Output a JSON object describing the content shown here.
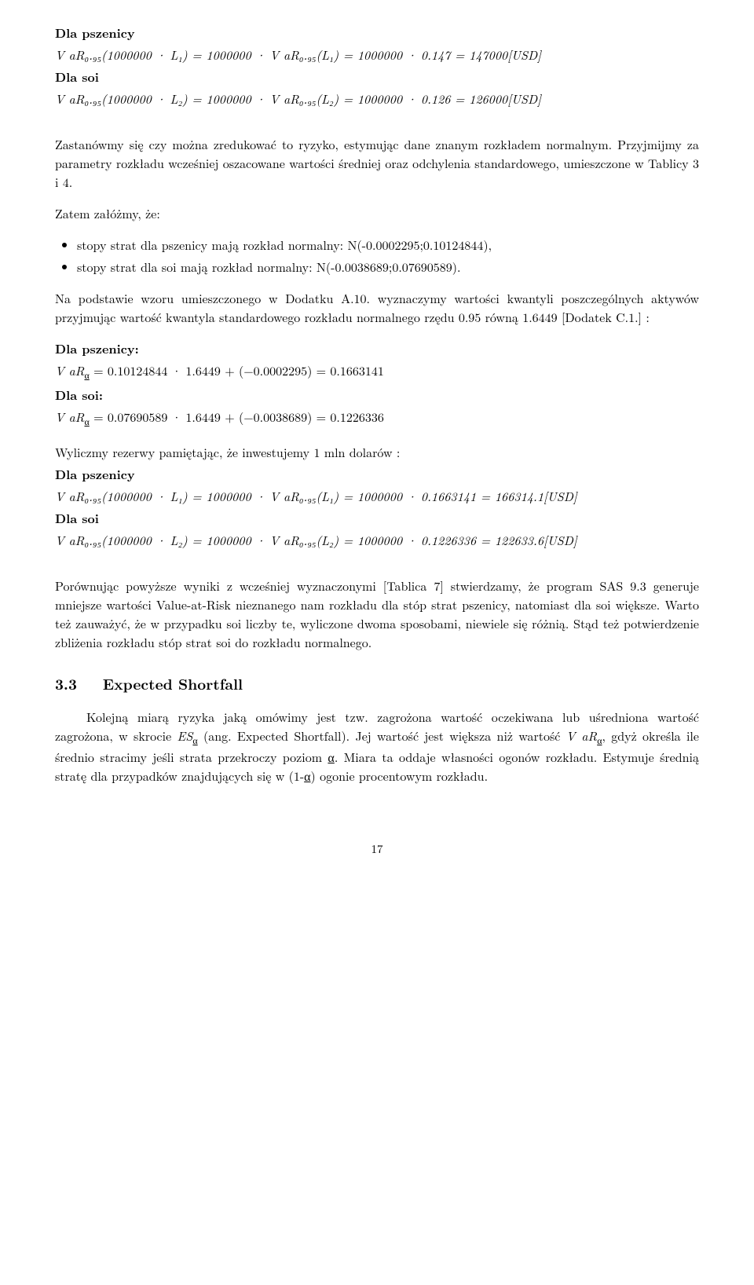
{
  "block1": {
    "h_wheat": "Dla pszenicy",
    "eq_wheat": "V aR₀.₉₅(1000000 · L₁) = 1000000 · V aR₀.₉₅(L₁) = 1000000 · 0.147 = 147000[USD]",
    "h_soy": "Dla soi",
    "eq_soy": "V aR₀.₉₅(1000000 · L₂) = 1000000 · V aR₀.₉₅(L₂) = 1000000 · 0.126 = 126000[USD]"
  },
  "para1": "Zastanówmy się czy można zredukować to ryzyko, estymując dane znanym rozkładem normalnym. Przyjmijmy za parametry rozkładu wcześniej oszacowane wartości średniej oraz odchylenia standardowego, umieszczone w Tablicy 3 i 4.",
  "assume": "Zatem załóżmy, że:",
  "bullets": {
    "b1": "stopy strat dla pszenicy mają rozkład normalny: N(-0.0002295;0.10124844),",
    "b2": "stopy strat dla soi mają rozkład normalny: N(-0.0038689;0.07690589)."
  },
  "para2": "Na podstawie wzoru umieszczonego w Dodatku A.10. wyznaczymy wartości kwantyli poszczególnych aktywów przyjmując wartość kwantyla standardowego rozkładu normalnego rzędu 0.95 równą 1.6449 [Dodatek C.1.] :",
  "block2": {
    "h_wheat": "Dla pszenicy:",
    "eq_wheat_a": "V aR",
    "eq_wheat_sub": "α",
    "eq_wheat_b": " = 0.10124844 · 1.6449 + (−0.0002295) = 0.1663141",
    "h_soy": "Dla soi:",
    "eq_soy_a": "V aR",
    "eq_soy_sub": "α",
    "eq_soy_b": " = 0.07690589 · 1.6449 + (−0.0038689) = 0.1226336"
  },
  "para3": "Wyliczmy rezerwy pamiętając, że inwestujemy 1 mln dolarów :",
  "block3": {
    "h_wheat": "Dla pszenicy",
    "eq_wheat": "V aR₀.₉₅(1000000 · L₁) = 1000000 · V aR₀.₉₅(L₁) = 1000000 · 0.1663141 = 166314.1[USD]",
    "h_soy": "Dla soi",
    "eq_soy": "V aR₀.₉₅(1000000 · L₂) = 1000000 · V aR₀.₉₅(L₂) = 1000000 · 0.1226336 = 122633.6[USD]"
  },
  "para4": "Porównując powyższe wyniki z wcześniej wyznaczonymi [Tablica 7] stwierdzamy, że program SAS 9.3 generuje mniejsze wartości Value-at-Risk nieznanego nam rozkładu dla stóp strat pszenicy, natomiast dla soi większe. Warto też zauważyć, że w przypadku soi liczby te, wyliczone dwoma sposobami, niewiele się różnią. Stąd też potwierdzenie zbliżenia rozkładu stóp strat soi do rozkładu normalnego.",
  "section": {
    "num": "3.3",
    "title": "Expected Shortfall"
  },
  "para5_a": "Kolejną miarą ryzyka jaką omówimy jest tzw. zagrożona wartość oczekiwana lub uśredniona wartość zagrożona, w skrocie ",
  "para5_es": "ES",
  "para5_alpha": "α",
  "para5_b": " (ang. Expected Shortfall). Jej wartość jest większa niż wartość ",
  "para5_var": "V aR",
  "para5_c": ", gdyż określa ile średnio stracimy jeśli strata przekroczy poziom ",
  "para5_alpha2": "α",
  "para5_d": ". Miara ta oddaje własności ogonów rozkładu. Estymuje średnią stratę dla przypadków znajdujących się w (1-",
  "para5_alpha3": "α",
  "para5_e": ") ogonie procentowym rozkładu.",
  "page": "17"
}
